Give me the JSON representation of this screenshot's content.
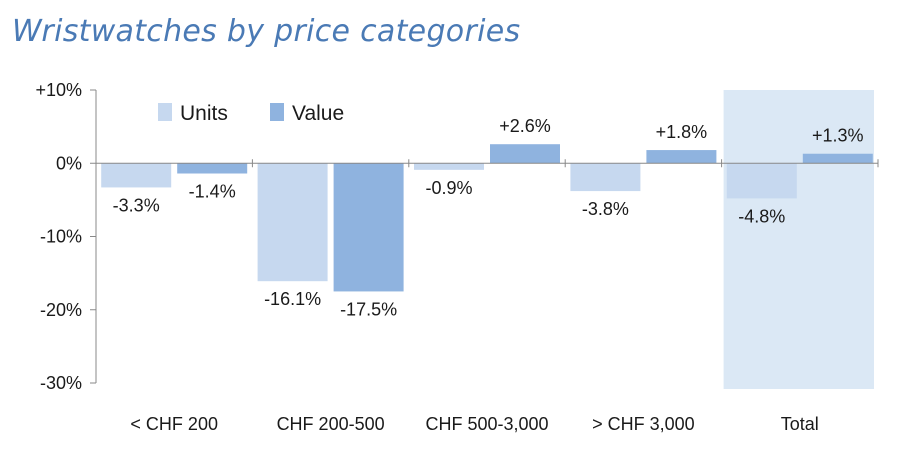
{
  "chart_data": {
    "type": "bar",
    "title": "Wristwatches by price categories",
    "categories": [
      "< CHF 200",
      "CHF 200-500",
      "CHF 500-3,000",
      "> CHF 3,000",
      "Total"
    ],
    "series": [
      {
        "name": "Units",
        "values": [
          -3.3,
          -16.1,
          -0.9,
          -3.8,
          -4.8
        ],
        "labels": [
          "-3.3%",
          "-16.1%",
          "-0.9%",
          "-3.8%",
          "-4.8%"
        ]
      },
      {
        "name": "Value",
        "values": [
          -1.4,
          -17.5,
          2.6,
          1.8,
          1.3
        ],
        "labels": [
          "-1.4%",
          "-17.5%",
          "+2.6%",
          "+1.8%",
          "+1.3%"
        ]
      }
    ],
    "ylim": [
      -30,
      10
    ],
    "yticks": [
      10,
      0,
      -10,
      -20,
      -30
    ],
    "yticklabels": [
      "+10%",
      "0%",
      "-10%",
      "-20%",
      "-30%"
    ],
    "xlabel": "",
    "ylabel": "",
    "highlighted_category": "Total",
    "legend_placement": "top-left",
    "grid": false,
    "colors": {
      "units": "#c6d8ef",
      "value": "#8fb3df",
      "highlight": "#dbe8f5",
      "title": "#4a7ab5",
      "axis": "#888888",
      "text": "#1a1a1a"
    }
  }
}
